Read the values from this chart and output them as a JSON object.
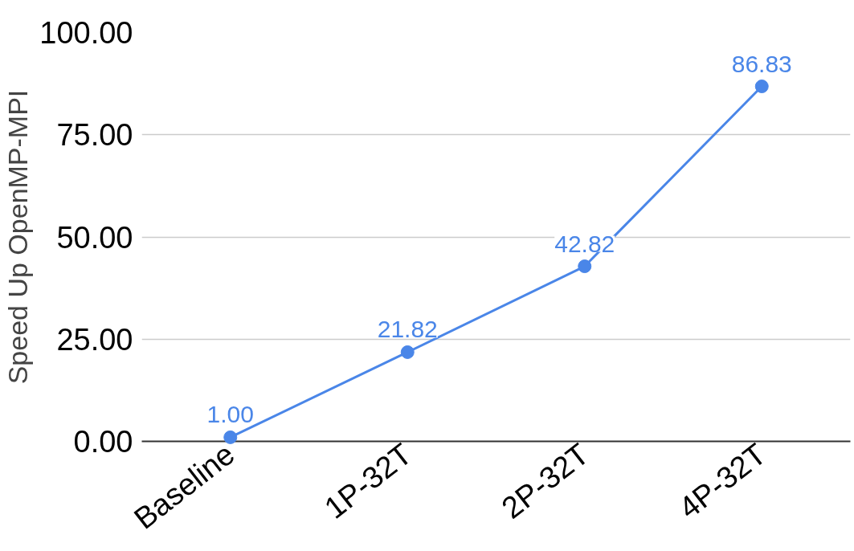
{
  "chart_data": {
    "type": "line",
    "ylabel": "Speed Up OpenMP-MPI",
    "categories": [
      "Baseline",
      "1P-32T",
      "2P-32T",
      "4P-32T"
    ],
    "series": [
      {
        "color": "#4a86e8",
        "values": [
          1.0,
          21.82,
          42.82,
          86.83
        ],
        "value_labels": [
          "1.00",
          "21.82",
          "42.82",
          "86.83"
        ]
      }
    ],
    "ylim": [
      0,
      100
    ],
    "yticks": [
      {
        "value": 0,
        "label": "0.00"
      },
      {
        "value": 25,
        "label": "25.00"
      },
      {
        "value": 50,
        "label": "50.00"
      },
      {
        "value": 75,
        "label": "75.00"
      },
      {
        "value": 100,
        "label": "100.00"
      }
    ],
    "grid": "y",
    "marker": "circle",
    "line_style": "solid"
  }
}
